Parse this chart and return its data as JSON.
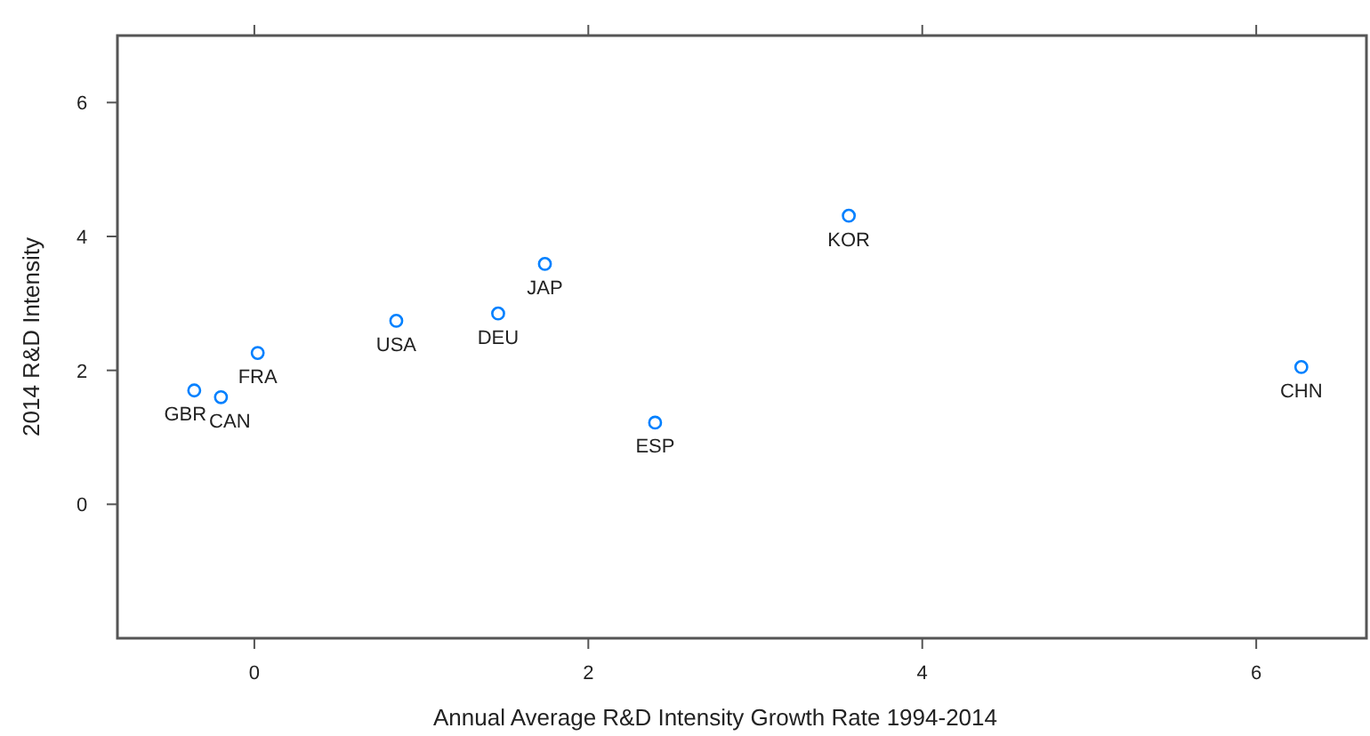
{
  "chart_data": {
    "type": "scatter",
    "xlabel": "Annual Average R&D Intensity Growth Rate 1994-2014",
    "ylabel": "2014 R&D Intensity",
    "x": [
      -0.36,
      -0.2,
      0.02,
      0.85,
      1.46,
      1.74,
      2.4,
      3.56,
      6.27
    ],
    "series": [
      {
        "color": "#0080ff",
        "values": [
          1.7,
          1.6,
          2.26,
          2.74,
          2.85,
          3.59,
          1.22,
          4.31,
          2.05
        ]
      }
    ],
    "annotations": [
      {
        "text": "GBR",
        "x": -0.36,
        "y": 1.7
      },
      {
        "text": "CAN",
        "x": -0.2,
        "y": 1.6
      },
      {
        "text": "FRA",
        "x": 0.02,
        "y": 2.26
      },
      {
        "text": "USA",
        "x": 0.85,
        "y": 2.74
      },
      {
        "text": "DEU",
        "x": 1.46,
        "y": 2.85
      },
      {
        "text": "JAP",
        "x": 1.74,
        "y": 3.59
      },
      {
        "text": "ESP",
        "x": 2.4,
        "y": 1.22
      },
      {
        "text": "KOR",
        "x": 3.56,
        "y": 4.31
      },
      {
        "text": "CHN",
        "x": 6.27,
        "y": 2.05
      }
    ],
    "xlim": [
      -0.82,
      6.66
    ],
    "ylim": [
      -2,
      7
    ],
    "xticks": [
      0,
      2,
      4,
      6
    ],
    "yticks": [
      0,
      2,
      4,
      6
    ],
    "marker": "circle",
    "grid": false
  }
}
